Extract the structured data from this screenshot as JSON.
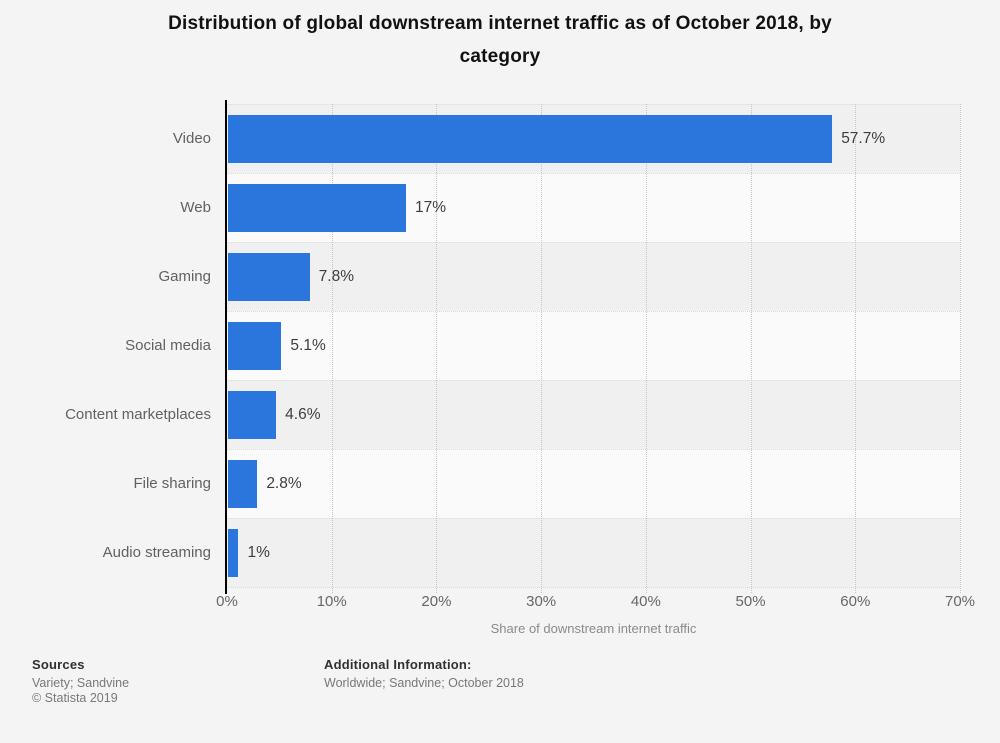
{
  "title": "Distribution of global downstream internet traffic as of October 2018, by category",
  "chart_data": {
    "type": "bar",
    "orientation": "horizontal",
    "title": "Distribution of global downstream internet traffic as of October 2018, by category",
    "categories": [
      "Video",
      "Web",
      "Gaming",
      "Social media",
      "Content marketplaces",
      "File sharing",
      "Audio streaming"
    ],
    "values": [
      57.7,
      17,
      7.8,
      5.1,
      4.6,
      2.8,
      1
    ],
    "value_labels": [
      "57.7%",
      "17%",
      "7.8%",
      "5.1%",
      "4.6%",
      "2.8%",
      "1%"
    ],
    "xlabel": "Share of downstream internet traffic",
    "ylabel": "",
    "xlim": [
      0,
      70
    ],
    "x_ticks": [
      "0%",
      "10%",
      "20%",
      "30%",
      "40%",
      "50%",
      "60%",
      "70%"
    ],
    "grid": "vertical-dotted",
    "legend": "none",
    "bar_color": "#2b76dc",
    "band_colors": [
      "#f0f0f1",
      "#fafafa"
    ]
  },
  "footer": {
    "sources_label": "Sources",
    "sources_text": "Variety; Sandvine",
    "copyright": "© Statista 2019",
    "additional_label": "Additional Information:",
    "additional_text": "Worldwide; Sandvine; October 2018"
  }
}
